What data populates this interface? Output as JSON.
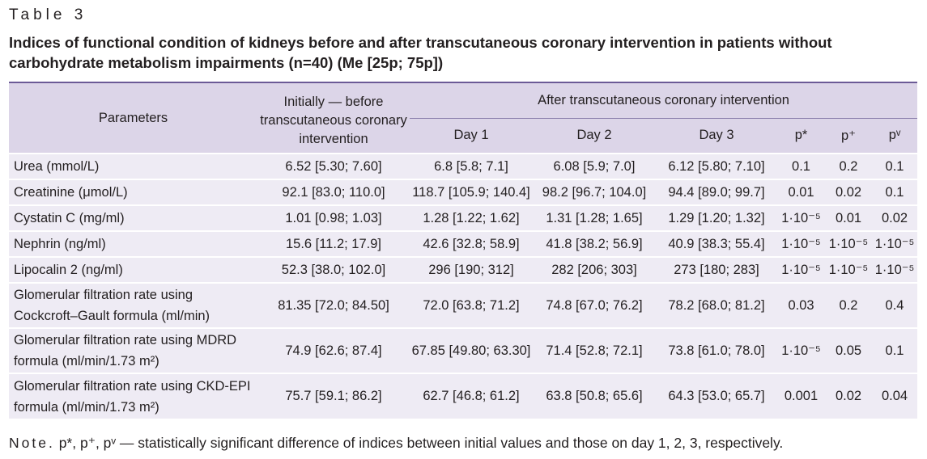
{
  "table_label": "Table 3",
  "caption": "Indices of functional condition of kidneys before and after transcutaneous coronary intervention in patients without carbohydrate metabolism impairments (n=40) (Me [25p; 75p])",
  "header": {
    "parameters": "Parameters",
    "initially": "Initially — before transcutaneous coronary intervention",
    "after": "After transcutaneous coronary intervention",
    "sub": [
      "Day 1",
      "Day 2",
      "Day 3",
      "p*",
      "p⁺",
      "pᵛ"
    ]
  },
  "rows": [
    {
      "param": "Urea (mmol/L)",
      "initial": "6.52 [5.30; 7.60]",
      "day1": "6.8 [5.8; 7.1]",
      "day2": "6.08 [5.9; 7.0]",
      "day3": "6.12 [5.80; 7.10]",
      "p1": "0.1",
      "p2": "0.2",
      "p3": "0.1"
    },
    {
      "param": "Creatinine (μmol/L)",
      "initial": "92.1 [83.0; 110.0]",
      "day1": "118.7 [105.9; 140.4]",
      "day2": "98.2 [96.7; 104.0]",
      "day3": "94.4 [89.0; 99.7]",
      "p1": "0.01",
      "p2": "0.02",
      "p3": "0.1"
    },
    {
      "param": "Cystatin C (mg/ml)",
      "initial": "1.01 [0.98; 1.03]",
      "day1": "1.28 [1.22; 1.62]",
      "day2": "1.31 [1.28; 1.65]",
      "day3": "1.29 [1.20; 1.32]",
      "p1": "1·10⁻⁵",
      "p2": "0.01",
      "p3": "0.02"
    },
    {
      "param": "Nephrin (ng/ml)",
      "initial": "15.6 [11.2; 17.9]",
      "day1": "42.6 [32.8; 58.9]",
      "day2": "41.8 [38.2; 56.9]",
      "day3": "40.9 [38.3; 55.4]",
      "p1": "1·10⁻⁵",
      "p2": "1·10⁻⁵",
      "p3": "1·10⁻⁵"
    },
    {
      "param": "Lipocalin 2 (ng/ml)",
      "initial": "52.3 [38.0; 102.0]",
      "day1": "296 [190; 312]",
      "day2": "282 [206; 303]",
      "day3": "273 [180; 283]",
      "p1": "1·10⁻⁵",
      "p2": "1·10⁻⁵",
      "p3": "1·10⁻⁵"
    },
    {
      "param_lines": [
        "Glomerular filtration rate using",
        "Cockcroft–Gault formula (ml/min)"
      ],
      "initial": "81.35 [72.0; 84.50]",
      "day1": "72.0 [63.8; 71.2]",
      "day2": "74.8 [67.0; 76.2]",
      "day3": "78.2 [68.0; 81.2]",
      "p1": "0.03",
      "p2": "0.2",
      "p3": "0.4"
    },
    {
      "param_lines": [
        "Glomerular filtration rate using MDRD",
        "formula (ml/min/1.73 m²)"
      ],
      "initial": "74.9 [62.6; 87.4]",
      "day1": "67.85 [49.80; 63.30]",
      "day2": "71.4 [52.8; 72.1]",
      "day3": "73.8 [61.0; 78.0]",
      "p1": "1·10⁻⁵",
      "p2": "0.05",
      "p3": "0.1"
    },
    {
      "param_lines": [
        "Glomerular filtration rate using CKD-EPI",
        "formula (ml/min/1.73 m²)"
      ],
      "initial": "75.7 [59.1; 86.2]",
      "day1": "62.7 [46.8; 61.2]",
      "day2": "63.8 [50.8; 65.6]",
      "day3": "64.3 [53.0; 65.7]",
      "p1": "0.001",
      "p2": "0.02",
      "p3": "0.04"
    }
  ],
  "note_label": "Note.",
  "note_text": "p*, p⁺, pᵛ — statistically significant difference of indices between initial values and those on day 1, 2, 3,  respectively.",
  "colors": {
    "header_bg": "#dcd5e8",
    "body_bg": "#eeebf4",
    "rule": "#6b5a96"
  }
}
